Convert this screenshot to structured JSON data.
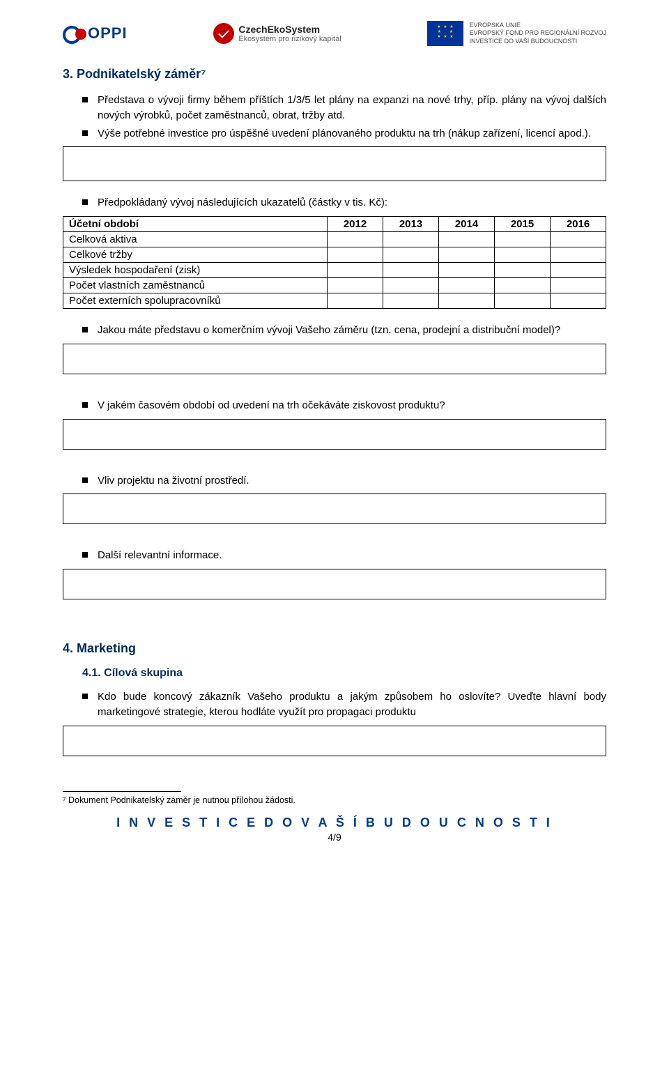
{
  "logos": {
    "oppi": "OPPI",
    "czech_line1": "CzechEkoSystem",
    "czech_line2": "Ekosystém pro rizikový kapitál",
    "eu_line1": "EVROPSKÁ UNIE",
    "eu_line2": "EVROPSKÝ FOND PRO REGIONÁLNÍ ROZVOJ",
    "eu_line3": "INVESTICE DO VAŠÍ BUDOUCNOSTI"
  },
  "section3": {
    "title": "3. Podnikatelský záměr⁷",
    "b1": "Představa o vývoji firmy během příštích 1/3/5 let plány na expanzi na nové trhy, příp. plány na vývoj dalších nových výrobků, počet zaměstnanců, obrat, tržby atd.",
    "b2": "Výše potřebné investice pro úspěšné uvedení plánovaného produktu na trh (nákup zařízení, licencí apod.).",
    "b3": "Předpokládaný vývoj následujících ukazatelů (částky v tis. Kč):",
    "b4": "Jakou máte představu o komerčním vývoji Vašeho záměru (tzn. cena, prodejní a distribuční model)?",
    "b5": "V jakém časovém období od uvedení na trh očekáváte ziskovost produktu?",
    "b6": "Vliv projektu na životní prostředí.",
    "b7": "Další relevantní informace."
  },
  "table": {
    "header0": "Účetní období",
    "years": [
      "2012",
      "2013",
      "2014",
      "2015",
      "2016"
    ],
    "rows": [
      "Celková aktiva",
      "Celkové tržby",
      "Výsledek hospodaření (zisk)",
      "Počet vlastních zaměstnanců",
      "Počet externích spolupracovníků"
    ]
  },
  "section4": {
    "title": "4. Marketing",
    "sub": "4.1. Cílová skupina",
    "b1": "Kdo bude koncový zákazník Vašeho produktu a jakým způsobem ho oslovíte? Uveďte hlavní body marketingové strategie, kterou hodláte využít pro propagaci produktu"
  },
  "footnote": "⁷ Dokument Podnikatelský záměr je nutnou přílohou žádosti.",
  "footer": {
    "line": "I N V E S T I C E   D O   V A Š Í   B U D O U C N O S T I",
    "page": "4/9"
  }
}
